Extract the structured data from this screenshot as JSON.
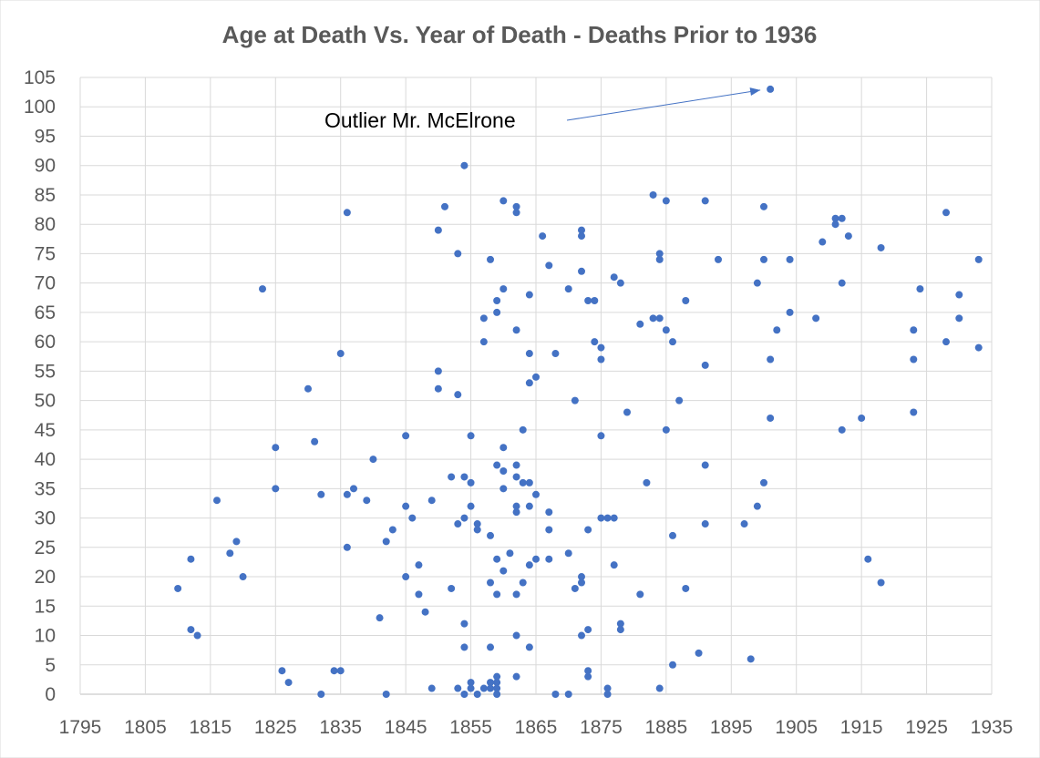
{
  "chart_data": {
    "type": "scatter",
    "title": "Age at Death Vs. Year of Death - Deaths Prior to 1936",
    "xlabel": "",
    "ylabel": "",
    "xlim": [
      1795,
      1935
    ],
    "ylim": [
      0,
      105
    ],
    "x_ticks": [
      1795,
      1805,
      1815,
      1825,
      1835,
      1845,
      1855,
      1865,
      1875,
      1885,
      1895,
      1905,
      1915,
      1925,
      1935
    ],
    "y_ticks": [
      0,
      5,
      10,
      15,
      20,
      25,
      30,
      35,
      40,
      45,
      50,
      55,
      60,
      65,
      70,
      75,
      80,
      85,
      90,
      95,
      100,
      105
    ],
    "grid": true,
    "legend": "none",
    "annotation": {
      "text": "Outlier Mr. McElrone",
      "target": [
        1901,
        103
      ]
    },
    "color": "#4472c4",
    "points": [
      [
        1901,
        103
      ],
      [
        1854,
        90
      ],
      [
        1883,
        85
      ],
      [
        1885,
        84
      ],
      [
        1891,
        84
      ],
      [
        1860,
        84
      ],
      [
        1851,
        83
      ],
      [
        1862,
        83
      ],
      [
        1900,
        83
      ],
      [
        1862,
        82
      ],
      [
        1836,
        82
      ],
      [
        1928,
        82
      ],
      [
        1911,
        81
      ],
      [
        1912,
        81
      ],
      [
        1911,
        80
      ],
      [
        1850,
        79
      ],
      [
        1872,
        79
      ],
      [
        1872,
        78
      ],
      [
        1866,
        78
      ],
      [
        1913,
        78
      ],
      [
        1909,
        77
      ],
      [
        1918,
        76
      ],
      [
        1853,
        75
      ],
      [
        1884,
        75
      ],
      [
        1858,
        74
      ],
      [
        1884,
        74
      ],
      [
        1893,
        74
      ],
      [
        1900,
        74
      ],
      [
        1904,
        74
      ],
      [
        1933,
        74
      ],
      [
        1867,
        73
      ],
      [
        1872,
        72
      ],
      [
        1877,
        71
      ],
      [
        1878,
        70
      ],
      [
        1899,
        70
      ],
      [
        1912,
        70
      ],
      [
        1823,
        69
      ],
      [
        1870,
        69
      ],
      [
        1860,
        69
      ],
      [
        1924,
        69
      ],
      [
        1864,
        68
      ],
      [
        1930,
        68
      ],
      [
        1859,
        67
      ],
      [
        1873,
        67
      ],
      [
        1874,
        67
      ],
      [
        1888,
        67
      ],
      [
        1859,
        65
      ],
      [
        1904,
        65
      ],
      [
        1857,
        64
      ],
      [
        1883,
        64
      ],
      [
        1884,
        64
      ],
      [
        1908,
        64
      ],
      [
        1930,
        64
      ],
      [
        1881,
        63
      ],
      [
        1862,
        62
      ],
      [
        1885,
        62
      ],
      [
        1902,
        62
      ],
      [
        1923,
        62
      ],
      [
        1857,
        60
      ],
      [
        1874,
        60
      ],
      [
        1886,
        60
      ],
      [
        1928,
        60
      ],
      [
        1875,
        59
      ],
      [
        1933,
        59
      ],
      [
        1835,
        58
      ],
      [
        1864,
        58
      ],
      [
        1868,
        58
      ],
      [
        1875,
        57
      ],
      [
        1901,
        57
      ],
      [
        1923,
        57
      ],
      [
        1891,
        56
      ],
      [
        1850,
        55
      ],
      [
        1865,
        54
      ],
      [
        1864,
        53
      ],
      [
        1830,
        52
      ],
      [
        1850,
        52
      ],
      [
        1853,
        51
      ],
      [
        1871,
        50
      ],
      [
        1887,
        50
      ],
      [
        1879,
        48
      ],
      [
        1923,
        48
      ],
      [
        1901,
        47
      ],
      [
        1915,
        47
      ],
      [
        1863,
        45
      ],
      [
        1885,
        45
      ],
      [
        1912,
        45
      ],
      [
        1845,
        44
      ],
      [
        1855,
        44
      ],
      [
        1875,
        44
      ],
      [
        1831,
        43
      ],
      [
        1825,
        42
      ],
      [
        1860,
        42
      ],
      [
        1840,
        40
      ],
      [
        1859,
        39
      ],
      [
        1862,
        39
      ],
      [
        1891,
        39
      ],
      [
        1860,
        38
      ],
      [
        1852,
        37
      ],
      [
        1854,
        37
      ],
      [
        1862,
        37
      ],
      [
        1855,
        36
      ],
      [
        1863,
        36
      ],
      [
        1864,
        36
      ],
      [
        1882,
        36
      ],
      [
        1900,
        36
      ],
      [
        1825,
        35
      ],
      [
        1837,
        35
      ],
      [
        1860,
        35
      ],
      [
        1832,
        34
      ],
      [
        1836,
        34
      ],
      [
        1865,
        34
      ],
      [
        1816,
        33
      ],
      [
        1839,
        33
      ],
      [
        1849,
        33
      ],
      [
        1845,
        32
      ],
      [
        1855,
        32
      ],
      [
        1862,
        32
      ],
      [
        1864,
        32
      ],
      [
        1899,
        32
      ],
      [
        1862,
        31
      ],
      [
        1867,
        31
      ],
      [
        1846,
        30
      ],
      [
        1854,
        30
      ],
      [
        1875,
        30
      ],
      [
        1876,
        30
      ],
      [
        1877,
        30
      ],
      [
        1853,
        29
      ],
      [
        1856,
        29
      ],
      [
        1891,
        29
      ],
      [
        1897,
        29
      ],
      [
        1843,
        28
      ],
      [
        1856,
        28
      ],
      [
        1867,
        28
      ],
      [
        1873,
        28
      ],
      [
        1858,
        27
      ],
      [
        1886,
        27
      ],
      [
        1819,
        26
      ],
      [
        1842,
        26
      ],
      [
        1836,
        25
      ],
      [
        1818,
        24
      ],
      [
        1861,
        24
      ],
      [
        1870,
        24
      ],
      [
        1812,
        23
      ],
      [
        1859,
        23
      ],
      [
        1865,
        23
      ],
      [
        1867,
        23
      ],
      [
        1916,
        23
      ],
      [
        1847,
        22
      ],
      [
        1864,
        22
      ],
      [
        1877,
        22
      ],
      [
        1860,
        21
      ],
      [
        1820,
        20
      ],
      [
        1845,
        20
      ],
      [
        1872,
        20
      ],
      [
        1858,
        19
      ],
      [
        1863,
        19
      ],
      [
        1872,
        19
      ],
      [
        1918,
        19
      ],
      [
        1810,
        18
      ],
      [
        1852,
        18
      ],
      [
        1871,
        18
      ],
      [
        1888,
        18
      ],
      [
        1847,
        17
      ],
      [
        1859,
        17
      ],
      [
        1862,
        17
      ],
      [
        1881,
        17
      ],
      [
        1848,
        14
      ],
      [
        1841,
        13
      ],
      [
        1854,
        12
      ],
      [
        1878,
        12
      ],
      [
        1812,
        11
      ],
      [
        1873,
        11
      ],
      [
        1878,
        11
      ],
      [
        1813,
        10
      ],
      [
        1862,
        10
      ],
      [
        1872,
        10
      ],
      [
        1854,
        8
      ],
      [
        1858,
        8
      ],
      [
        1864,
        8
      ],
      [
        1890,
        7
      ],
      [
        1898,
        6
      ],
      [
        1886,
        5
      ],
      [
        1826,
        4
      ],
      [
        1834,
        4
      ],
      [
        1835,
        4
      ],
      [
        1873,
        4
      ],
      [
        1859,
        3
      ],
      [
        1862,
        3
      ],
      [
        1873,
        3
      ],
      [
        1827,
        2
      ],
      [
        1855,
        2
      ],
      [
        1858,
        2
      ],
      [
        1859,
        2
      ],
      [
        1849,
        1
      ],
      [
        1853,
        1
      ],
      [
        1855,
        1
      ],
      [
        1857,
        1
      ],
      [
        1858,
        1
      ],
      [
        1859,
        1
      ],
      [
        1876,
        1
      ],
      [
        1884,
        1
      ],
      [
        1832,
        0
      ],
      [
        1842,
        0
      ],
      [
        1854,
        0
      ],
      [
        1856,
        0
      ],
      [
        1859,
        0
      ],
      [
        1868,
        0
      ],
      [
        1870,
        0
      ],
      [
        1876,
        0
      ]
    ]
  }
}
